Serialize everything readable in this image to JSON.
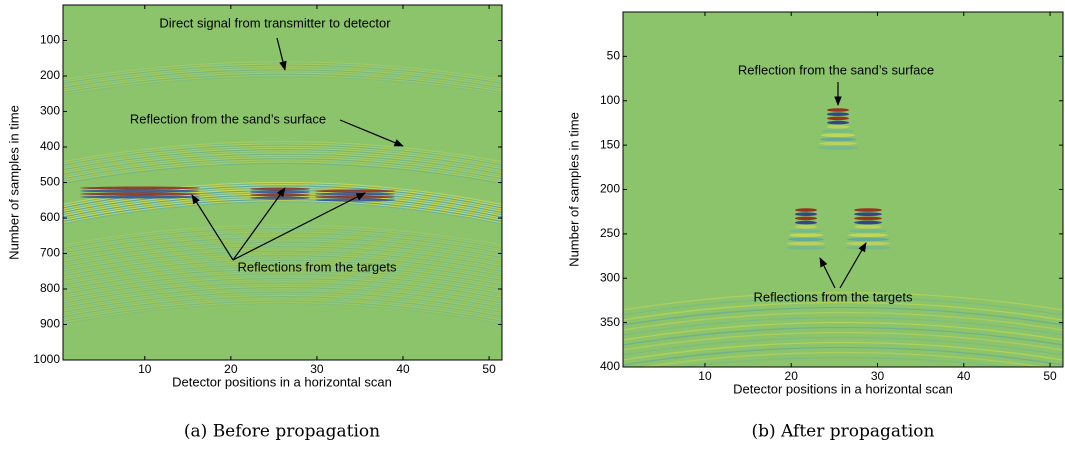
{
  "chart_data": [
    {
      "type": "image",
      "xlabel": "Detector positions in a horizontal scan",
      "ylabel": "Number of samples in time",
      "xlim": [
        0.5,
        51.5
      ],
      "ylim": [
        0,
        1000
      ],
      "xticks": [
        10,
        20,
        30,
        40,
        50
      ],
      "yticks": [
        100,
        200,
        300,
        400,
        500,
        600,
        700,
        800,
        900,
        1000
      ],
      "annotations": [
        "Direct signal from transmitter to detector",
        "Reflection from the sand’s surface",
        "Reflections from the targets"
      ],
      "caption": "(a) Before propagation"
    },
    {
      "type": "image",
      "xlabel": "Detector positions in a horizontal scan",
      "ylabel": "Number of samples in time",
      "xlim": [
        0.5,
        51.5
      ],
      "ylim": [
        0,
        400
      ],
      "xticks": [
        10,
        20,
        30,
        40,
        50
      ],
      "yticks": [
        50,
        100,
        150,
        200,
        250,
        300,
        350,
        400
      ],
      "annotations": [
        "Reflection from the sand’s surface",
        "Reflections from the targets"
      ],
      "caption": "(b) After propagation"
    }
  ]
}
